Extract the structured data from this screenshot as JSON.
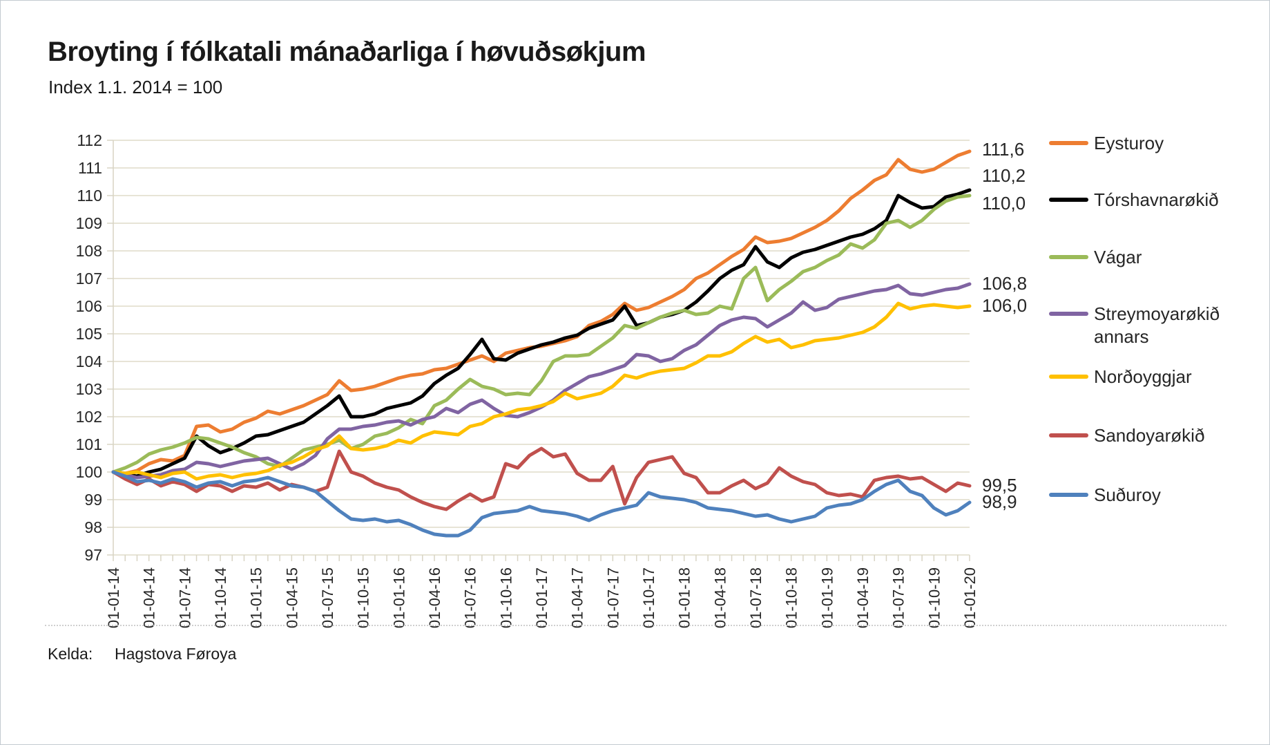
{
  "title": "Broyting í fólkatali mánaðarliga í høvuðsøkjum",
  "subtitle": "Index 1.1. 2014 = 100",
  "source": {
    "label": "Kelda:",
    "value": "Hagstova Føroya"
  },
  "chart_data": {
    "type": "line",
    "title": "Broyting í fólkatali mánaðarliga í høvuðsøkjum",
    "subtitle": "Index 1.1. 2014 = 100",
    "ylim": [
      97,
      112
    ],
    "y_ticks": [
      97,
      98,
      99,
      100,
      101,
      102,
      103,
      104,
      105,
      106,
      107,
      108,
      109,
      110,
      111,
      112
    ],
    "grid": true,
    "legend_position": "right",
    "months_total": 73,
    "x_first": "01-01-14",
    "x_last": "01-01-20",
    "x_tick_labels": [
      "01-01-14",
      "01-04-14",
      "01-07-14",
      "01-10-14",
      "01-01-15",
      "01-04-15",
      "01-07-15",
      "01-10-15",
      "01-01-16",
      "01-04-16",
      "01-07-16",
      "01-10-16",
      "01-01-17",
      "01-04-17",
      "01-07-17",
      "01-10-17",
      "01-01-18",
      "01-04-18",
      "01-07-18",
      "01-10-18",
      "01-01-19",
      "01-04-19",
      "01-07-19",
      "01-10-19",
      "01-01-20"
    ],
    "grid_color": "#DFDBC9",
    "axis_color": "#D8D4C4",
    "series": [
      {
        "name": "Eysturoy",
        "color": "#ED7D31",
        "end_label": "111,6",
        "label_v": 111.65,
        "values": [
          100,
          99.95,
          100.05,
          100.3,
          100.45,
          100.4,
          100.6,
          101.65,
          101.7,
          101.45,
          101.55,
          101.8,
          101.95,
          102.2,
          102.1,
          102.25,
          102.4,
          102.6,
          102.8,
          103.3,
          102.95,
          103.0,
          103.1,
          103.25,
          103.4,
          103.5,
          103.55,
          103.7,
          103.75,
          103.9,
          104.05,
          104.2,
          104.0,
          104.3,
          104.4,
          104.5,
          104.55,
          104.65,
          104.75,
          104.9,
          105.3,
          105.45,
          105.7,
          106.1,
          105.85,
          105.95,
          106.15,
          106.35,
          106.6,
          107.0,
          107.2,
          107.5,
          107.8,
          108.05,
          108.5,
          108.3,
          108.35,
          108.45,
          108.65,
          108.85,
          109.1,
          109.45,
          109.9,
          110.2,
          110.55,
          110.75,
          111.3,
          110.95,
          110.85,
          110.95,
          111.2,
          111.45,
          111.6
        ]
      },
      {
        "name": "Tórshavnarøkið",
        "color": "#000000",
        "end_label": "110,2",
        "label_v": 110.7,
        "values": [
          100,
          99.9,
          99.85,
          100.0,
          100.1,
          100.3,
          100.5,
          101.3,
          100.95,
          100.7,
          100.85,
          101.05,
          101.3,
          101.35,
          101.5,
          101.65,
          101.8,
          102.1,
          102.4,
          102.75,
          102.0,
          102.0,
          102.1,
          102.3,
          102.4,
          102.5,
          102.75,
          103.2,
          103.5,
          103.75,
          104.25,
          104.8,
          104.1,
          104.05,
          104.3,
          104.45,
          104.6,
          104.7,
          104.85,
          104.95,
          105.2,
          105.35,
          105.5,
          106.0,
          105.3,
          105.4,
          105.6,
          105.7,
          105.85,
          106.15,
          106.55,
          107.0,
          107.3,
          107.5,
          108.15,
          107.6,
          107.4,
          107.75,
          107.95,
          108.05,
          108.2,
          108.35,
          108.5,
          108.6,
          108.8,
          109.1,
          110.0,
          109.75,
          109.55,
          109.6,
          109.95,
          110.05,
          110.2
        ]
      },
      {
        "name": "Vágar",
        "color": "#9BBB59",
        "end_label": "110,0",
        "label_v": 109.7,
        "values": [
          100,
          100.15,
          100.35,
          100.65,
          100.8,
          100.9,
          101.05,
          101.25,
          101.2,
          101.05,
          100.9,
          100.7,
          100.55,
          100.3,
          100.2,
          100.5,
          100.8,
          100.9,
          101.0,
          101.15,
          100.85,
          101.0,
          101.3,
          101.4,
          101.6,
          101.9,
          101.75,
          102.4,
          102.6,
          103.0,
          103.35,
          103.1,
          103.0,
          102.8,
          102.85,
          102.8,
          103.3,
          104.0,
          104.2,
          104.2,
          104.25,
          104.55,
          104.85,
          105.3,
          105.2,
          105.4,
          105.6,
          105.75,
          105.85,
          105.7,
          105.75,
          106.0,
          105.9,
          107.0,
          107.4,
          106.2,
          106.6,
          106.9,
          107.25,
          107.4,
          107.65,
          107.85,
          108.25,
          108.1,
          108.4,
          109.0,
          109.1,
          108.85,
          109.1,
          109.5,
          109.8,
          109.95,
          110.0
        ]
      },
      {
        "name": "Streymoyarøkið annars",
        "color": "#8064A2",
        "end_label": "106,8",
        "label_v": 106.8,
        "values": [
          100,
          99.9,
          99.8,
          99.85,
          99.9,
          100.05,
          100.1,
          100.35,
          100.3,
          100.2,
          100.3,
          100.4,
          100.45,
          100.5,
          100.3,
          100.1,
          100.3,
          100.6,
          101.2,
          101.55,
          101.55,
          101.65,
          101.7,
          101.8,
          101.85,
          101.7,
          101.9,
          102.0,
          102.3,
          102.15,
          102.45,
          102.6,
          102.3,
          102.05,
          102.0,
          102.15,
          102.35,
          102.6,
          102.95,
          103.2,
          103.45,
          103.55,
          103.7,
          103.85,
          104.25,
          104.2,
          104.0,
          104.1,
          104.4,
          104.6,
          104.95,
          105.3,
          105.5,
          105.6,
          105.55,
          105.25,
          105.5,
          105.75,
          106.15,
          105.85,
          105.95,
          106.25,
          106.35,
          106.45,
          106.55,
          106.6,
          106.75,
          106.45,
          106.4,
          106.5,
          106.6,
          106.65,
          106.8
        ]
      },
      {
        "name": "Norðoyggjar",
        "color": "#FFC000",
        "end_label": "106,0",
        "label_v": 106.0,
        "values": [
          100,
          99.95,
          100.0,
          99.9,
          99.8,
          99.95,
          100.0,
          99.75,
          99.85,
          99.9,
          99.8,
          99.9,
          99.95,
          100.05,
          100.25,
          100.35,
          100.55,
          100.8,
          100.95,
          101.3,
          100.85,
          100.8,
          100.85,
          100.95,
          101.15,
          101.05,
          101.3,
          101.45,
          101.4,
          101.35,
          101.65,
          101.75,
          102.0,
          102.1,
          102.25,
          102.3,
          102.4,
          102.55,
          102.85,
          102.65,
          102.75,
          102.85,
          103.1,
          103.5,
          103.4,
          103.55,
          103.65,
          103.7,
          103.75,
          103.95,
          104.2,
          104.2,
          104.35,
          104.65,
          104.9,
          104.7,
          104.8,
          104.5,
          104.6,
          104.75,
          104.8,
          104.85,
          104.95,
          105.05,
          105.25,
          105.6,
          106.1,
          105.9,
          106.0,
          106.05,
          106.0,
          105.95,
          106.0
        ]
      },
      {
        "name": "Sandoyarøkið",
        "color": "#C0504D",
        "end_label": "99,5",
        "label_v": 99.5,
        "values": [
          100,
          99.75,
          99.55,
          99.75,
          99.5,
          99.65,
          99.55,
          99.3,
          99.55,
          99.5,
          99.3,
          99.5,
          99.45,
          99.6,
          99.35,
          99.55,
          99.45,
          99.3,
          99.45,
          100.75,
          100.0,
          99.85,
          99.6,
          99.45,
          99.35,
          99.1,
          98.9,
          98.75,
          98.65,
          98.95,
          99.2,
          98.95,
          99.1,
          100.3,
          100.15,
          100.6,
          100.85,
          100.55,
          100.65,
          99.95,
          99.7,
          99.7,
          100.2,
          98.85,
          99.8,
          100.35,
          100.45,
          100.55,
          99.95,
          99.8,
          99.25,
          99.25,
          99.5,
          99.7,
          99.4,
          99.6,
          100.15,
          99.85,
          99.65,
          99.55,
          99.25,
          99.15,
          99.2,
          99.1,
          99.7,
          99.8,
          99.85,
          99.75,
          99.8,
          99.55,
          99.3,
          99.6,
          99.5
        ]
      },
      {
        "name": "Suðuroy",
        "color": "#4F81BD",
        "end_label": "98,9",
        "label_v": 98.9,
        "values": [
          100,
          99.85,
          99.65,
          99.7,
          99.6,
          99.75,
          99.65,
          99.45,
          99.6,
          99.65,
          99.5,
          99.65,
          99.7,
          99.8,
          99.65,
          99.5,
          99.45,
          99.3,
          98.95,
          98.6,
          98.3,
          98.25,
          98.3,
          98.2,
          98.25,
          98.1,
          97.9,
          97.75,
          97.7,
          97.7,
          97.9,
          98.35,
          98.5,
          98.55,
          98.6,
          98.75,
          98.6,
          98.55,
          98.5,
          98.4,
          98.25,
          98.45,
          98.6,
          98.7,
          98.8,
          99.25,
          99.1,
          99.05,
          99.0,
          98.9,
          98.7,
          98.65,
          98.6,
          98.5,
          98.4,
          98.45,
          98.3,
          98.2,
          98.3,
          98.4,
          98.7,
          98.8,
          98.85,
          99.0,
          99.3,
          99.55,
          99.7,
          99.3,
          99.15,
          98.7,
          98.45,
          98.6,
          98.9
        ]
      }
    ]
  }
}
